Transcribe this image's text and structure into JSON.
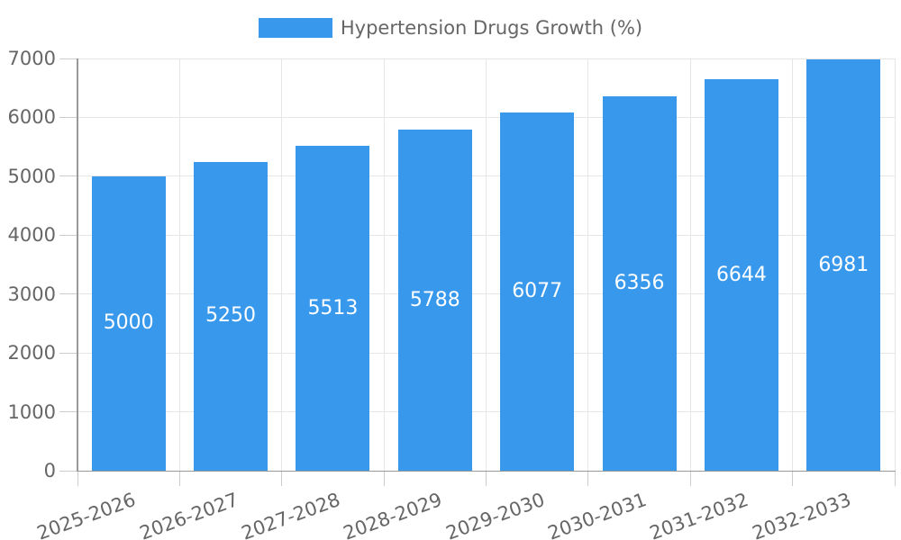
{
  "chart_data": {
    "type": "bar",
    "legend": {
      "label": "Hypertension Drugs Growth (%)",
      "position": "top"
    },
    "categories": [
      "2025-2026",
      "2026-2027",
      "2027-2028",
      "2028-2029",
      "2029-2030",
      "2030-2031",
      "2031-2032",
      "2032-2033"
    ],
    "values": [
      5000,
      5250,
      5513,
      5788,
      6077,
      6356,
      6644,
      6981
    ],
    "bar_labels": [
      "5000",
      "5250",
      "5513",
      "5788",
      "6077",
      "6356",
      "6644",
      "6981"
    ],
    "title": "",
    "xlabel": "",
    "ylabel": "",
    "ylim": [
      0,
      7000
    ],
    "ytick_step": 1000,
    "yticks": [
      0,
      1000,
      2000,
      3000,
      4000,
      5000,
      6000,
      7000
    ],
    "ytick_labels": [
      "0",
      "1000",
      "2000",
      "3000",
      "4000",
      "5000",
      "6000",
      "7000"
    ],
    "grid": true,
    "x_label_rotation_deg": -20,
    "bar_label_position": "center",
    "colors": {
      "bar": "#3898ec",
      "bar_label": "#ffffff",
      "axis_text": "#666666",
      "grid_line": "#e6e6e6",
      "axis_line": "#999999",
      "tick_mark": "#cccccc",
      "background": "#ffffff"
    }
  }
}
